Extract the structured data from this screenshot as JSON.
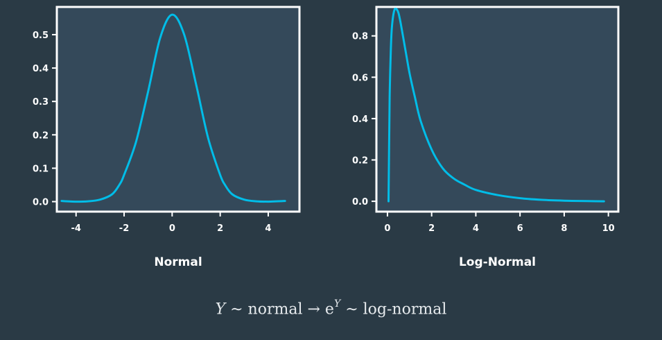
{
  "colors": {
    "background": "#2a3a45",
    "plot_bg": "#34495a",
    "curve": "#00bde8",
    "frame": "#ffffff"
  },
  "chart_data": [
    {
      "type": "line",
      "title": "",
      "xlabel": "Normal",
      "ylabel": "",
      "xlim": [
        -4.8,
        5.3
      ],
      "ylim": [
        -0.03,
        0.583
      ],
      "xticks": [
        -4,
        -2,
        0,
        2,
        4
      ],
      "xtick_labels": [
        "-4",
        "-2",
        "0",
        "2",
        "4"
      ],
      "yticks": [
        0.0,
        0.1,
        0.2,
        0.3,
        0.4,
        0.5
      ],
      "ytick_labels": [
        "0.0",
        "0.1",
        "0.2",
        "0.3",
        "0.4",
        "0.5"
      ],
      "grid": false,
      "series": [
        {
          "x": [
            -4.6,
            -4.0,
            -3.5,
            -3.0,
            -2.5,
            -2.2,
            -2.0,
            -1.5,
            -1.0,
            -0.5,
            0.0,
            0.5,
            1.0,
            1.5,
            2.0,
            2.2,
            2.5,
            3.0,
            3.5,
            4.0,
            4.7
          ],
          "y": [
            0.002,
            0.0,
            0.001,
            0.006,
            0.022,
            0.05,
            0.08,
            0.18,
            0.33,
            0.49,
            0.56,
            0.5,
            0.35,
            0.19,
            0.08,
            0.05,
            0.022,
            0.006,
            0.001,
            0.0,
            0.002
          ]
        }
      ]
    },
    {
      "type": "line",
      "title": "",
      "xlabel": "Log-Normal",
      "ylabel": "",
      "xlim": [
        -0.5,
        10.45
      ],
      "ylim": [
        -0.05,
        0.94
      ],
      "xticks": [
        0,
        2,
        4,
        6,
        8,
        10
      ],
      "xtick_labels": [
        "0",
        "2",
        "4",
        "6",
        "8",
        "10"
      ],
      "yticks": [
        0.0,
        0.2,
        0.4,
        0.6,
        0.8
      ],
      "ytick_labels": [
        "0.0",
        "0.2",
        "0.4",
        "0.6",
        "0.8"
      ],
      "grid": false,
      "series": [
        {
          "x": [
            0.05,
            0.1,
            0.15,
            0.2,
            0.3,
            0.4,
            0.5,
            0.6,
            0.8,
            1.0,
            1.25,
            1.5,
            2.0,
            2.5,
            3.0,
            3.5,
            4.0,
            5.0,
            6.0,
            7.0,
            8.0,
            9.0,
            9.8
          ],
          "y": [
            0.0,
            0.5,
            0.72,
            0.84,
            0.92,
            0.93,
            0.91,
            0.86,
            0.74,
            0.62,
            0.5,
            0.39,
            0.25,
            0.16,
            0.11,
            0.08,
            0.055,
            0.03,
            0.015,
            0.007,
            0.003,
            0.001,
            0.0
          ]
        }
      ]
    }
  ],
  "formula": {
    "lhs_var": "Y",
    "op1": " ∼ normal → e",
    "sup": "Y",
    "op2": " ∼ log-normal"
  }
}
